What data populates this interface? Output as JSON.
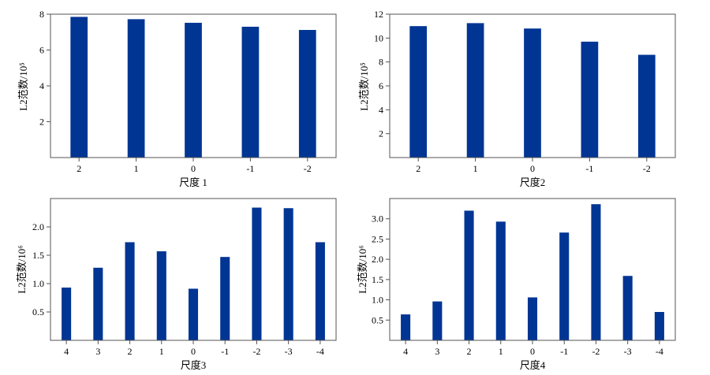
{
  "chart_data": [
    {
      "type": "bar",
      "xlabel": "尺度 1",
      "ylabel": "L2范数/10⁵",
      "categories": [
        "2",
        "1",
        "0",
        "-1",
        "-2"
      ],
      "values": [
        7.85,
        7.72,
        7.52,
        7.3,
        7.12
      ],
      "ylim": [
        0,
        8
      ],
      "yticks": [
        "2",
        "4",
        "6",
        "8"
      ],
      "ytick_values": [
        2,
        4,
        6,
        8
      ],
      "grid": false,
      "bar_color": "#003594"
    },
    {
      "type": "bar",
      "xlabel": "尺度2",
      "ylabel": "L2范数/10⁵",
      "categories": [
        "2",
        "1",
        "0",
        "-1",
        "-2"
      ],
      "values": [
        11.0,
        11.25,
        10.8,
        9.7,
        8.6
      ],
      "ylim": [
        0,
        12
      ],
      "yticks": [
        "2",
        "4",
        "6",
        "8",
        "10",
        "12"
      ],
      "ytick_values": [
        2,
        4,
        6,
        8,
        10,
        12
      ],
      "grid": false,
      "bar_color": "#003594"
    },
    {
      "type": "bar",
      "xlabel": "尺度3",
      "ylabel": "L2范数/10⁶",
      "categories": [
        "4",
        "3",
        "2",
        "1",
        "0",
        "-1",
        "-2",
        "-3",
        "-4"
      ],
      "values": [
        0.93,
        1.28,
        1.73,
        1.57,
        0.91,
        1.47,
        2.34,
        2.33,
        1.73
      ],
      "ylim": [
        0,
        2.5
      ],
      "yticks": [
        "0.5",
        "1.0",
        "1.5",
        "2.0"
      ],
      "ytick_values": [
        0.5,
        1.0,
        1.5,
        2.0
      ],
      "grid": false,
      "bar_color": "#003594"
    },
    {
      "type": "bar",
      "xlabel": "尺度4",
      "ylabel": "L2范数/10⁶",
      "categories": [
        "4",
        "3",
        "2",
        "1",
        "0",
        "-1",
        "-2",
        "-3",
        "-4"
      ],
      "values": [
        0.64,
        0.96,
        3.2,
        2.93,
        1.06,
        2.66,
        3.36,
        1.59,
        0.7
      ],
      "ylim": [
        0,
        3.5
      ],
      "yticks": [
        "0.5",
        "1.0",
        "1.5",
        "2.0",
        "2.5",
        "3.0"
      ],
      "ytick_values": [
        0.5,
        1.0,
        1.5,
        2.0,
        2.5,
        3.0
      ],
      "grid": false,
      "bar_color": "#003594"
    }
  ]
}
